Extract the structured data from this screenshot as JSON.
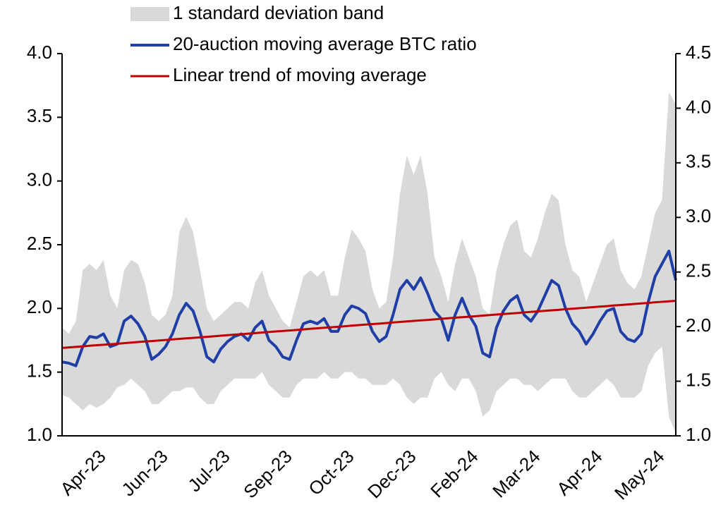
{
  "chart_data": {
    "type": "line",
    "categories": [
      null,
      null,
      null,
      null,
      null,
      null,
      "Apr-23",
      null,
      null,
      null,
      null,
      null,
      null,
      null,
      null,
      "Jun-23",
      null,
      null,
      null,
      null,
      null,
      null,
      null,
      null,
      "Jul-23",
      null,
      null,
      null,
      null,
      null,
      null,
      null,
      null,
      "Sep-23",
      null,
      null,
      null,
      null,
      null,
      null,
      null,
      null,
      "Oct-23",
      null,
      null,
      null,
      null,
      null,
      null,
      null,
      null,
      "Dec-23",
      null,
      null,
      null,
      null,
      null,
      null,
      null,
      null,
      "Feb-24",
      null,
      null,
      null,
      null,
      null,
      null,
      null,
      null,
      "Mar-24",
      null,
      null,
      null,
      null,
      null,
      null,
      null,
      null,
      "Apr-24",
      null,
      null,
      null,
      null,
      null,
      null,
      null,
      null,
      "May-24",
      null,
      null
    ],
    "series": [
      {
        "name": "1 standard deviation band",
        "color": "#d9d9d9",
        "upper": [
          1.85,
          1.8,
          1.9,
          2.3,
          2.35,
          2.3,
          2.38,
          2.1,
          2.0,
          2.3,
          2.38,
          2.35,
          2.2,
          1.95,
          1.9,
          1.95,
          2.1,
          2.6,
          2.72,
          2.6,
          2.3,
          2.0,
          1.9,
          1.95,
          2.0,
          2.05,
          2.05,
          2.0,
          2.2,
          2.3,
          2.1,
          2.0,
          1.9,
          1.85,
          2.05,
          2.25,
          2.3,
          2.25,
          2.3,
          2.1,
          2.1,
          2.4,
          2.62,
          2.55,
          2.45,
          2.15,
          2.0,
          2.05,
          2.4,
          2.9,
          3.2,
          3.05,
          3.2,
          2.9,
          2.4,
          2.25,
          2.05,
          2.35,
          2.55,
          2.4,
          2.25,
          2.0,
          1.95,
          2.3,
          2.5,
          2.65,
          2.7,
          2.45,
          2.4,
          2.55,
          2.75,
          2.9,
          2.85,
          2.5,
          2.3,
          2.25,
          2.05,
          2.2,
          2.35,
          2.5,
          2.55,
          2.3,
          2.2,
          2.15,
          2.25,
          2.5,
          2.75,
          2.85,
          3.7,
          3.6
        ],
        "lower": [
          1.32,
          1.3,
          1.25,
          1.2,
          1.25,
          1.22,
          1.25,
          1.3,
          1.38,
          1.4,
          1.45,
          1.4,
          1.35,
          1.25,
          1.25,
          1.3,
          1.35,
          1.35,
          1.38,
          1.38,
          1.3,
          1.25,
          1.25,
          1.35,
          1.4,
          1.45,
          1.45,
          1.45,
          1.45,
          1.5,
          1.4,
          1.35,
          1.3,
          1.3,
          1.4,
          1.45,
          1.45,
          1.45,
          1.5,
          1.45,
          1.45,
          1.5,
          1.5,
          1.45,
          1.45,
          1.4,
          1.4,
          1.4,
          1.45,
          1.4,
          1.3,
          1.25,
          1.3,
          1.3,
          1.45,
          1.5,
          1.4,
          1.35,
          1.45,
          1.45,
          1.35,
          1.15,
          1.2,
          1.35,
          1.4,
          1.45,
          1.45,
          1.4,
          1.4,
          1.35,
          1.4,
          1.45,
          1.45,
          1.45,
          1.35,
          1.3,
          1.3,
          1.35,
          1.4,
          1.45,
          1.4,
          1.3,
          1.3,
          1.3,
          1.35,
          1.55,
          1.65,
          1.7,
          1.15,
          1.02
        ]
      },
      {
        "name": "20-auction moving average BTC ratio",
        "color": "#1f3fa6",
        "values": [
          1.58,
          1.57,
          1.55,
          1.7,
          1.78,
          1.77,
          1.8,
          1.7,
          1.72,
          1.9,
          1.94,
          1.88,
          1.78,
          1.6,
          1.64,
          1.7,
          1.8,
          1.95,
          2.04,
          1.98,
          1.82,
          1.62,
          1.58,
          1.68,
          1.74,
          1.78,
          1.8,
          1.75,
          1.85,
          1.9,
          1.75,
          1.7,
          1.62,
          1.6,
          1.75,
          1.88,
          1.9,
          1.88,
          1.92,
          1.82,
          1.82,
          1.95,
          2.02,
          2.0,
          1.96,
          1.82,
          1.74,
          1.78,
          1.95,
          2.15,
          2.22,
          2.15,
          2.24,
          2.12,
          1.98,
          1.92,
          1.75,
          1.95,
          2.08,
          1.95,
          1.86,
          1.65,
          1.62,
          1.85,
          1.98,
          2.06,
          2.1,
          1.95,
          1.9,
          1.98,
          2.1,
          2.22,
          2.18,
          2.0,
          1.88,
          1.82,
          1.72,
          1.8,
          1.9,
          1.98,
          2.0,
          1.82,
          1.76,
          1.74,
          1.8,
          2.05,
          2.25,
          2.35,
          2.45,
          2.22
        ]
      },
      {
        "name": "Linear trend of moving average",
        "color": "#c00000",
        "values": [
          1.69,
          1.694,
          1.698,
          1.702,
          1.707,
          1.711,
          1.715,
          1.719,
          1.723,
          1.727,
          1.732,
          1.736,
          1.74,
          1.744,
          1.748,
          1.752,
          1.757,
          1.761,
          1.765,
          1.769,
          1.773,
          1.777,
          1.781,
          1.786,
          1.79,
          1.794,
          1.798,
          1.802,
          1.806,
          1.811,
          1.815,
          1.819,
          1.823,
          1.827,
          1.831,
          1.835,
          1.84,
          1.844,
          1.848,
          1.852,
          1.856,
          1.86,
          1.865,
          1.869,
          1.873,
          1.877,
          1.881,
          1.885,
          1.89,
          1.894,
          1.898,
          1.902,
          1.906,
          1.91,
          1.914,
          1.919,
          1.923,
          1.927,
          1.931,
          1.935,
          1.939,
          1.944,
          1.948,
          1.952,
          1.956,
          1.96,
          1.964,
          1.969,
          1.973,
          1.977,
          1.981,
          1.985,
          1.989,
          1.994,
          1.998,
          2.002,
          2.006,
          2.01,
          2.014,
          2.018,
          2.023,
          2.027,
          2.031,
          2.035,
          2.039,
          2.043,
          2.048,
          2.052,
          2.056,
          2.06
        ]
      }
    ],
    "ylim": [
      1.0,
      4.0
    ],
    "yticks": [
      {
        "value": 1.0,
        "label": "1.0"
      },
      1.5,
      {
        "value": 2.0,
        "label": "2.0"
      },
      2.5,
      {
        "value": 3.0,
        "label": "3.0"
      },
      3.5,
      {
        "value": 4.0,
        "label": "4.0"
      }
    ],
    "y2lim": [
      1.0,
      4.5
    ],
    "y2ticks": [
      {
        "value": 1.0,
        "label": "1.0"
      },
      1.5,
      {
        "value": 2.0,
        "label": "2.0"
      },
      2.5,
      {
        "value": 3.0,
        "label": "3.0"
      },
      3.5,
      {
        "value": 4.0,
        "label": "4.0"
      },
      4.5
    ],
    "legend": "top-left"
  }
}
